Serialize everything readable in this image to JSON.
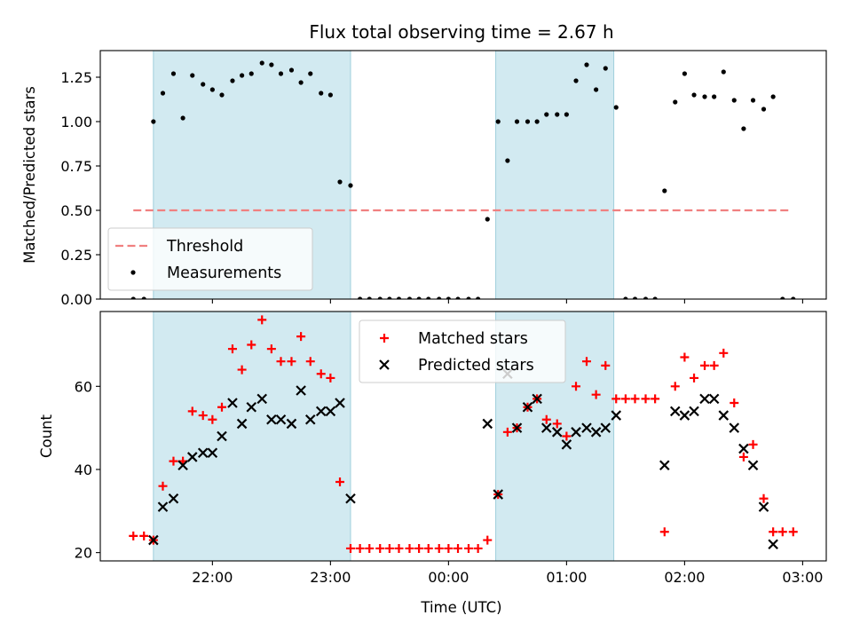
{
  "chart_data": {
    "title": "Flux total observing time = 2.67 h",
    "xlabel": "Time (UTC)",
    "x_unit": "hours relative to 00:00 UTC",
    "xlim": [
      -2.95,
      3.2
    ],
    "xticks": [
      {
        "value": -2,
        "label": "22:00"
      },
      {
        "value": -1,
        "label": "23:00"
      },
      {
        "value": 0,
        "label": "00:00"
      },
      {
        "value": 1,
        "label": "01:00"
      },
      {
        "value": 2,
        "label": "02:00"
      },
      {
        "value": 3,
        "label": "03:00"
      }
    ],
    "shaded_intervals": [
      {
        "start": -2.5,
        "end": -0.83
      },
      {
        "start": 0.4,
        "end": 1.4
      }
    ],
    "shade_color": "#add8e6",
    "panels": [
      {
        "type": "scatter",
        "ylabel": "Matched/Predicted stars",
        "ylim": [
          0,
          1.4
        ],
        "yticks": [
          {
            "value": 0,
            "label": "0.00"
          },
          {
            "value": 0.25,
            "label": "0.25"
          },
          {
            "value": 0.5,
            "label": "0.50"
          },
          {
            "value": 0.75,
            "label": "0.75"
          },
          {
            "value": 1.0,
            "label": "1.00"
          },
          {
            "value": 1.25,
            "label": "1.25"
          }
        ],
        "threshold": {
          "name": "Threshold",
          "y": 0.5,
          "x_range": [
            -2.67,
            2.9
          ],
          "color": "#f08080"
        },
        "series": [
          {
            "name": "Measurements",
            "marker": "dot",
            "color": "#000000",
            "points": [
              [
                -2.67,
                0.0
              ],
              [
                -2.58,
                0.0
              ],
              [
                -2.5,
                1.0
              ],
              [
                -2.42,
                1.16
              ],
              [
                -2.33,
                1.27
              ],
              [
                -2.25,
                1.02
              ],
              [
                -2.17,
                1.26
              ],
              [
                -2.08,
                1.21
              ],
              [
                -2.0,
                1.18
              ],
              [
                -1.92,
                1.15
              ],
              [
                -1.83,
                1.23
              ],
              [
                -1.75,
                1.26
              ],
              [
                -1.67,
                1.27
              ],
              [
                -1.58,
                1.33
              ],
              [
                -1.5,
                1.32
              ],
              [
                -1.42,
                1.27
              ],
              [
                -1.33,
                1.29
              ],
              [
                -1.25,
                1.22
              ],
              [
                -1.17,
                1.27
              ],
              [
                -1.08,
                1.16
              ],
              [
                -1.0,
                1.15
              ],
              [
                -0.92,
                0.66
              ],
              [
                -0.83,
                0.64
              ],
              [
                -0.75,
                0.0
              ],
              [
                -0.67,
                0.0
              ],
              [
                -0.58,
                0.0
              ],
              [
                -0.5,
                0.0
              ],
              [
                -0.42,
                0.0
              ],
              [
                -0.33,
                0.0
              ],
              [
                -0.25,
                0.0
              ],
              [
                -0.17,
                0.0
              ],
              [
                -0.08,
                0.0
              ],
              [
                0.0,
                0.0
              ],
              [
                0.08,
                0.0
              ],
              [
                0.17,
                0.0
              ],
              [
                0.25,
                0.0
              ],
              [
                0.33,
                0.45
              ],
              [
                0.42,
                1.0
              ],
              [
                0.5,
                0.78
              ],
              [
                0.58,
                1.0
              ],
              [
                0.67,
                1.0
              ],
              [
                0.75,
                1.0
              ],
              [
                0.83,
                1.04
              ],
              [
                0.92,
                1.04
              ],
              [
                1.0,
                1.04
              ],
              [
                1.08,
                1.23
              ],
              [
                1.17,
                1.32
              ],
              [
                1.25,
                1.18
              ],
              [
                1.33,
                1.3
              ],
              [
                1.42,
                1.08
              ],
              [
                1.5,
                0.0
              ],
              [
                1.58,
                0.0
              ],
              [
                1.67,
                0.0
              ],
              [
                1.75,
                0.0
              ],
              [
                1.83,
                0.61
              ],
              [
                1.92,
                1.11
              ],
              [
                2.0,
                1.27
              ],
              [
                2.08,
                1.15
              ],
              [
                2.17,
                1.14
              ],
              [
                2.25,
                1.14
              ],
              [
                2.33,
                1.28
              ],
              [
                2.42,
                1.12
              ],
              [
                2.5,
                0.96
              ],
              [
                2.58,
                1.12
              ],
              [
                2.67,
                1.07
              ],
              [
                2.75,
                1.14
              ],
              [
                2.83,
                0.0
              ],
              [
                2.92,
                0.0
              ]
            ]
          }
        ],
        "legend": {
          "location": "lower-left",
          "entries": [
            "Threshold",
            "Measurements"
          ]
        }
      },
      {
        "type": "scatter",
        "ylabel": "Count",
        "ylim": [
          18,
          78
        ],
        "yticks": [
          {
            "value": 20,
            "label": "20"
          },
          {
            "value": 40,
            "label": "40"
          },
          {
            "value": 60,
            "label": "60"
          }
        ],
        "series": [
          {
            "name": "Matched stars",
            "marker": "plus",
            "color": "#ff0000",
            "points": [
              [
                -2.67,
                24
              ],
              [
                -2.58,
                24
              ],
              [
                -2.5,
                23
              ],
              [
                -2.42,
                36
              ],
              [
                -2.33,
                42
              ],
              [
                -2.25,
                42
              ],
              [
                -2.17,
                54
              ],
              [
                -2.08,
                53
              ],
              [
                -2.0,
                52
              ],
              [
                -1.92,
                55
              ],
              [
                -1.83,
                69
              ],
              [
                -1.75,
                64
              ],
              [
                -1.67,
                70
              ],
              [
                -1.58,
                76
              ],
              [
                -1.5,
                69
              ],
              [
                -1.42,
                66
              ],
              [
                -1.33,
                66
              ],
              [
                -1.25,
                72
              ],
              [
                -1.17,
                66
              ],
              [
                -1.08,
                63
              ],
              [
                -1.0,
                62
              ],
              [
                -0.92,
                37
              ],
              [
                -0.83,
                21
              ],
              [
                -0.75,
                21
              ],
              [
                -0.67,
                21
              ],
              [
                -0.58,
                21
              ],
              [
                -0.5,
                21
              ],
              [
                -0.42,
                21
              ],
              [
                -0.33,
                21
              ],
              [
                -0.25,
                21
              ],
              [
                -0.17,
                21
              ],
              [
                -0.08,
                21
              ],
              [
                0.0,
                21
              ],
              [
                0.08,
                21
              ],
              [
                0.17,
                21
              ],
              [
                0.25,
                21
              ],
              [
                0.33,
                23
              ],
              [
                0.42,
                34
              ],
              [
                0.5,
                49
              ],
              [
                0.58,
                50
              ],
              [
                0.67,
                55
              ],
              [
                0.75,
                57
              ],
              [
                0.83,
                52
              ],
              [
                0.92,
                51
              ],
              [
                1.0,
                48
              ],
              [
                1.08,
                60
              ],
              [
                1.17,
                66
              ],
              [
                1.25,
                58
              ],
              [
                1.33,
                65
              ],
              [
                1.42,
                57
              ],
              [
                1.5,
                57
              ],
              [
                1.58,
                57
              ],
              [
                1.67,
                57
              ],
              [
                1.75,
                57
              ],
              [
                1.83,
                25
              ],
              [
                1.92,
                60
              ],
              [
                2.0,
                67
              ],
              [
                2.08,
                62
              ],
              [
                2.17,
                65
              ],
              [
                2.25,
                65
              ],
              [
                2.33,
                68
              ],
              [
                2.42,
                56
              ],
              [
                2.5,
                43
              ],
              [
                2.58,
                46
              ],
              [
                2.67,
                33
              ],
              [
                2.75,
                25
              ],
              [
                2.83,
                25
              ],
              [
                2.92,
                25
              ]
            ]
          },
          {
            "name": "Predicted stars",
            "marker": "x",
            "color": "#000000",
            "points": [
              [
                -2.5,
                23
              ],
              [
                -2.42,
                31
              ],
              [
                -2.33,
                33
              ],
              [
                -2.25,
                41
              ],
              [
                -2.17,
                43
              ],
              [
                -2.08,
                44
              ],
              [
                -2.0,
                44
              ],
              [
                -1.92,
                48
              ],
              [
                -1.83,
                56
              ],
              [
                -1.75,
                51
              ],
              [
                -1.67,
                55
              ],
              [
                -1.58,
                57
              ],
              [
                -1.5,
                52
              ],
              [
                -1.42,
                52
              ],
              [
                -1.33,
                51
              ],
              [
                -1.25,
                59
              ],
              [
                -1.17,
                52
              ],
              [
                -1.08,
                54
              ],
              [
                -1.0,
                54
              ],
              [
                -0.92,
                56
              ],
              [
                -0.83,
                33
              ],
              [
                0.33,
                51
              ],
              [
                0.42,
                34
              ],
              [
                0.5,
                63
              ],
              [
                0.58,
                50
              ],
              [
                0.67,
                55
              ],
              [
                0.75,
                57
              ],
              [
                0.83,
                50
              ],
              [
                0.92,
                49
              ],
              [
                1.0,
                46
              ],
              [
                1.08,
                49
              ],
              [
                1.17,
                50
              ],
              [
                1.25,
                49
              ],
              [
                1.33,
                50
              ],
              [
                1.42,
                53
              ],
              [
                1.83,
                41
              ],
              [
                1.92,
                54
              ],
              [
                2.0,
                53
              ],
              [
                2.08,
                54
              ],
              [
                2.17,
                57
              ],
              [
                2.25,
                57
              ],
              [
                2.33,
                53
              ],
              [
                2.42,
                50
              ],
              [
                2.5,
                45
              ],
              [
                2.58,
                41
              ],
              [
                2.67,
                31
              ],
              [
                2.75,
                22
              ]
            ]
          }
        ],
        "legend": {
          "location": "upper-center",
          "entries": [
            "Matched stars",
            "Predicted stars"
          ]
        }
      }
    ]
  }
}
